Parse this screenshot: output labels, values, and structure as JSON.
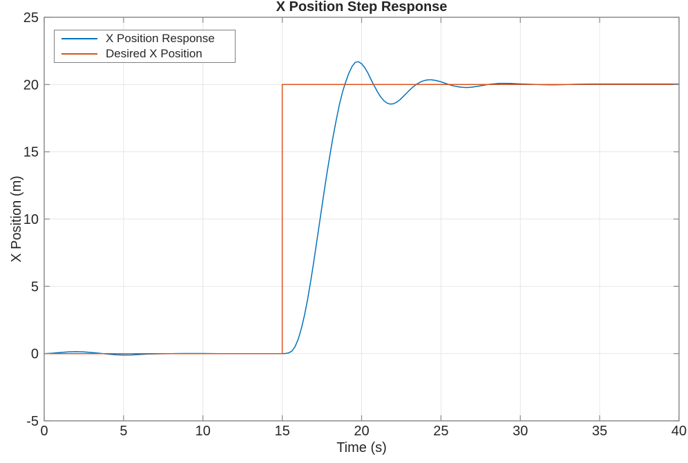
{
  "figure": {
    "background": "#ffffff"
  },
  "chart_data": {
    "type": "line",
    "title": "X Position Step Response",
    "xlabel": "Time (s)",
    "ylabel": "X Position (m)",
    "xlim": [
      0,
      40
    ],
    "ylim": [
      -5,
      25
    ],
    "xticks": [
      0,
      5,
      10,
      15,
      20,
      25,
      30,
      35,
      40
    ],
    "yticks": [
      -5,
      0,
      5,
      10,
      15,
      20,
      25
    ],
    "grid": true,
    "axis_color": "#8c8c8c",
    "grid_color": "#e6e6e6",
    "text_color": "#262626",
    "legend": {
      "position": "northwest",
      "border_color": "#7f7f7f",
      "entries": [
        "X Position Response",
        "Desired X Position"
      ]
    },
    "series": [
      {
        "name": "X Position Response",
        "color": "#0072BD",
        "line_width": 1.5,
        "points": [
          [
            0,
            0
          ],
          [
            0.5,
            0.03
          ],
          [
            1,
            0.08
          ],
          [
            1.5,
            0.12
          ],
          [
            2,
            0.14
          ],
          [
            2.5,
            0.12
          ],
          [
            3,
            0.08
          ],
          [
            3.5,
            0.02
          ],
          [
            4,
            -0.04
          ],
          [
            4.5,
            -0.09
          ],
          [
            5,
            -0.11
          ],
          [
            5.5,
            -0.1
          ],
          [
            6,
            -0.07
          ],
          [
            6.5,
            -0.04
          ],
          [
            7,
            -0.02
          ],
          [
            7.5,
            -0.01
          ],
          [
            8,
            0
          ],
          [
            9,
            0.01
          ],
          [
            10,
            0.01
          ],
          [
            11,
            0
          ],
          [
            12,
            0
          ],
          [
            13,
            0
          ],
          [
            14,
            0
          ],
          [
            15,
            0
          ],
          [
            15.2,
            0.01
          ],
          [
            15.4,
            0.05
          ],
          [
            15.6,
            0.18
          ],
          [
            15.8,
            0.5
          ],
          [
            16,
            1.05
          ],
          [
            16.2,
            1.85
          ],
          [
            16.4,
            2.85
          ],
          [
            16.6,
            4.05
          ],
          [
            16.8,
            5.45
          ],
          [
            17,
            6.95
          ],
          [
            17.2,
            8.55
          ],
          [
            17.4,
            10.15
          ],
          [
            17.6,
            11.75
          ],
          [
            17.8,
            13.3
          ],
          [
            18,
            14.75
          ],
          [
            18.2,
            16.1
          ],
          [
            18.4,
            17.35
          ],
          [
            18.6,
            18.5
          ],
          [
            18.8,
            19.45
          ],
          [
            19,
            20.2
          ],
          [
            19.2,
            20.85
          ],
          [
            19.4,
            21.35
          ],
          [
            19.6,
            21.65
          ],
          [
            19.8,
            21.7
          ],
          [
            20,
            21.55
          ],
          [
            20.2,
            21.25
          ],
          [
            20.4,
            20.85
          ],
          [
            20.6,
            20.35
          ],
          [
            20.8,
            19.9
          ],
          [
            21,
            19.45
          ],
          [
            21.2,
            19.08
          ],
          [
            21.4,
            18.8
          ],
          [
            21.6,
            18.62
          ],
          [
            21.8,
            18.55
          ],
          [
            22,
            18.57
          ],
          [
            22.2,
            18.68
          ],
          [
            22.4,
            18.85
          ],
          [
            22.6,
            19.08
          ],
          [
            22.8,
            19.32
          ],
          [
            23,
            19.56
          ],
          [
            23.2,
            19.78
          ],
          [
            23.4,
            19.97
          ],
          [
            23.6,
            20.12
          ],
          [
            23.8,
            20.24
          ],
          [
            24,
            20.31
          ],
          [
            24.2,
            20.35
          ],
          [
            24.4,
            20.35
          ],
          [
            24.6,
            20.32
          ],
          [
            24.8,
            20.27
          ],
          [
            25,
            20.2
          ],
          [
            25.2,
            20.12
          ],
          [
            25.4,
            20.04
          ],
          [
            25.6,
            19.96
          ],
          [
            25.8,
            19.9
          ],
          [
            26,
            19.85
          ],
          [
            26.2,
            19.81
          ],
          [
            26.4,
            19.79
          ],
          [
            26.6,
            19.78
          ],
          [
            26.8,
            19.79
          ],
          [
            27,
            19.81
          ],
          [
            27.2,
            19.85
          ],
          [
            27.4,
            19.89
          ],
          [
            27.6,
            19.93
          ],
          [
            27.8,
            19.97
          ],
          [
            28,
            20.01
          ],
          [
            28.2,
            20.04
          ],
          [
            28.4,
            20.06
          ],
          [
            28.6,
            20.08
          ],
          [
            28.8,
            20.09
          ],
          [
            29,
            20.09
          ],
          [
            29.4,
            20.08
          ],
          [
            29.8,
            20.06
          ],
          [
            30.2,
            20.04
          ],
          [
            30.6,
            20.02
          ],
          [
            31,
            20
          ],
          [
            31.4,
            19.99
          ],
          [
            31.8,
            19.98
          ],
          [
            32.2,
            19.98
          ],
          [
            32.6,
            19.99
          ],
          [
            33,
            20
          ],
          [
            33.5,
            20.02
          ],
          [
            34,
            20.03
          ],
          [
            34.5,
            20.04
          ],
          [
            35,
            20.04
          ],
          [
            36,
            20.04
          ],
          [
            37,
            20.04
          ],
          [
            38,
            20.04
          ],
          [
            39,
            20.04
          ],
          [
            40,
            20.04
          ]
        ]
      },
      {
        "name": "Desired X Position",
        "color": "#D95319",
        "line_width": 1.5,
        "points": [
          [
            0,
            0
          ],
          [
            15,
            0
          ],
          [
            15,
            20
          ],
          [
            40,
            20
          ]
        ]
      }
    ]
  }
}
